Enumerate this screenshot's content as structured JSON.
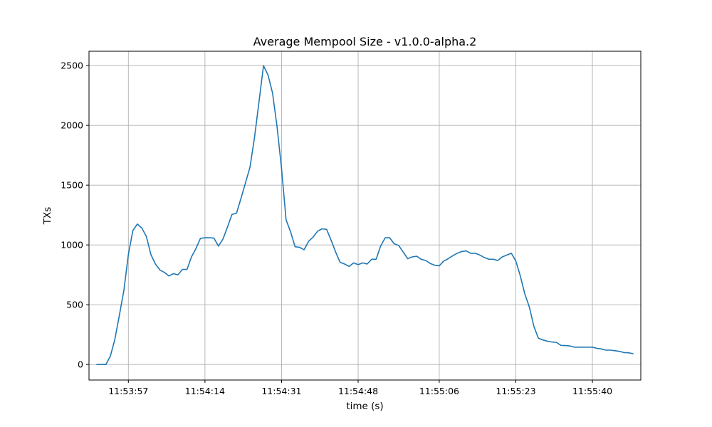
{
  "chart_data": {
    "type": "line",
    "title": "Average Mempool Size  -  v1.0.0-alpha.2",
    "xlabel": "time (s)",
    "ylabel": "TXs",
    "x_ticks": [
      "11:53:57",
      "11:54:14",
      "11:54:31",
      "11:54:48",
      "11:55:06",
      "11:55:23",
      "11:55:40"
    ],
    "y_ticks": [
      0,
      500,
      1000,
      1500,
      2000,
      2500
    ],
    "ylim": [
      -130,
      2620
    ],
    "grid": true,
    "series": [
      {
        "color": "#1f77b4",
        "x": [
          "11:53:50",
          "11:53:52",
          "11:53:53",
          "11:53:54",
          "11:53:55",
          "11:53:56",
          "11:53:57",
          "11:53:58",
          "11:53:59",
          "11:54:00",
          "11:54:01",
          "11:54:02",
          "11:54:03",
          "11:54:04",
          "11:54:05",
          "11:54:06",
          "11:54:07",
          "11:54:08",
          "11:54:09",
          "11:54:10",
          "11:54:11",
          "11:54:12",
          "11:54:13",
          "11:54:14",
          "11:54:15",
          "11:54:16",
          "11:54:17",
          "11:54:18",
          "11:54:19",
          "11:54:20",
          "11:54:21",
          "11:54:22",
          "11:54:23",
          "11:54:24",
          "11:54:25",
          "11:54:26",
          "11:54:27",
          "11:54:28",
          "11:54:29",
          "11:54:30",
          "11:54:31",
          "11:54:32",
          "11:54:33",
          "11:54:34",
          "11:54:35",
          "11:54:36",
          "11:54:37",
          "11:54:38",
          "11:54:39",
          "11:54:40",
          "11:54:41",
          "11:54:42",
          "11:54:43",
          "11:54:44",
          "11:54:45",
          "11:54:46",
          "11:54:47",
          "11:54:48",
          "11:54:49",
          "11:54:50",
          "11:54:51",
          "11:54:52",
          "11:54:53",
          "11:54:54",
          "11:54:55",
          "11:54:56",
          "11:54:57",
          "11:54:58",
          "11:54:59",
          "11:55:00",
          "11:55:01",
          "11:55:02",
          "11:55:03",
          "11:55:04",
          "11:55:05",
          "11:55:06",
          "11:55:07",
          "11:55:08",
          "11:55:09",
          "11:55:10",
          "11:55:11",
          "11:55:12",
          "11:55:13",
          "11:55:14",
          "11:55:15",
          "11:55:16",
          "11:55:17",
          "11:55:18",
          "11:55:19",
          "11:55:20",
          "11:55:21",
          "11:55:22",
          "11:55:23",
          "11:55:24",
          "11:55:25",
          "11:55:26",
          "11:55:27",
          "11:55:28",
          "11:55:29",
          "11:55:30",
          "11:55:31",
          "11:55:32",
          "11:55:33",
          "11:55:34",
          "11:55:35",
          "11:55:36",
          "11:55:37",
          "11:55:38",
          "11:55:39",
          "11:55:40",
          "11:55:41",
          "11:55:42",
          "11:55:43",
          "11:55:44",
          "11:55:45",
          "11:55:46",
          "11:55:47",
          "11:55:48",
          "11:55:49"
        ],
        "y": [
          0,
          0,
          70,
          210,
          410,
          620,
          920,
          1120,
          1175,
          1140,
          1070,
          920,
          840,
          790,
          770,
          740,
          760,
          750,
          795,
          795,
          900,
          970,
          1055,
          1060,
          1060,
          1057,
          990,
          1050,
          1150,
          1255,
          1265,
          1390,
          1520,
          1650,
          1900,
          2200,
          2500,
          2420,
          2270,
          1990,
          1640,
          1210,
          1110,
          985,
          980,
          960,
          1030,
          1065,
          1115,
          1135,
          1130,
          1040,
          940,
          855,
          840,
          820,
          850,
          835,
          850,
          840,
          880,
          880,
          990,
          1060,
          1060,
          1010,
          995,
          940,
          885,
          900,
          905,
          880,
          870,
          845,
          830,
          825,
          865,
          885,
          910,
          930,
          945,
          950,
          930,
          930,
          915,
          895,
          880,
          880,
          870,
          900,
          915,
          930,
          865,
          740,
          590,
          480,
          320,
          220,
          205,
          195,
          188,
          185,
          160,
          158,
          155,
          145,
          145,
          145,
          145,
          145,
          135,
          130,
          120,
          120,
          115,
          110,
          100,
          98,
          90
        ]
      }
    ]
  }
}
